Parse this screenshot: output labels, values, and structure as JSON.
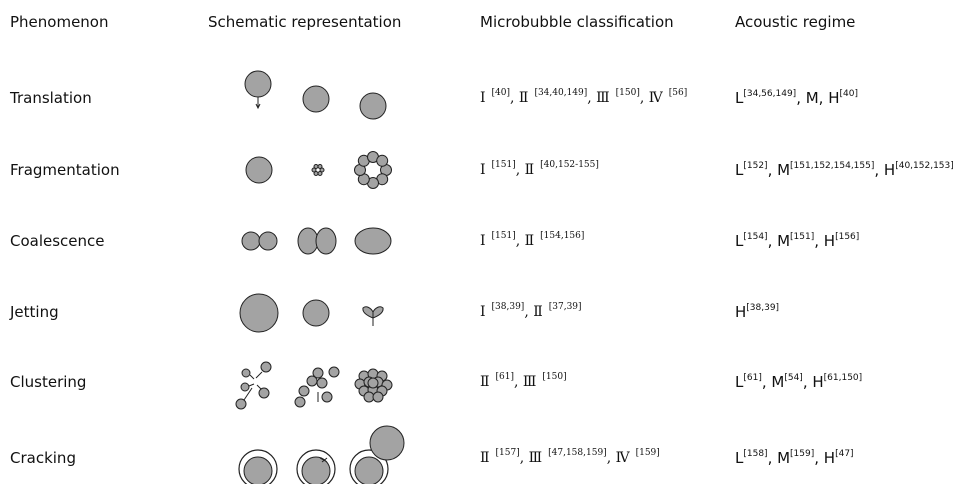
{
  "table": {
    "headers": [
      "Phenomenon",
      "Schematic representation",
      "Microbubble classification",
      "Acoustic regime"
    ],
    "rows": [
      {
        "phenomenon": "Translation",
        "classification": [
          {
            "text": "Ⅰ",
            "sup": "[40]"
          },
          {
            "text": ", Ⅱ",
            "sup": "[34,40,149]"
          },
          {
            "text": ", Ⅲ",
            "sup": "[150]"
          },
          {
            "text": ", Ⅳ",
            "sup": "[56]"
          }
        ],
        "regime": [
          {
            "text": "L",
            "sup": "[34,56,149]"
          },
          {
            "text": ", M, H",
            "sup": "[40]"
          }
        ]
      },
      {
        "phenomenon": "Fragmentation",
        "classification": [
          {
            "text": "Ⅰ",
            "sup": "[151]"
          },
          {
            "text": ", Ⅱ",
            "sup": "[40,152-155]"
          }
        ],
        "regime": [
          {
            "text": "L",
            "sup": "[152]"
          },
          {
            "text": ", M",
            "sup": "[151,152,154,155]"
          },
          {
            "text": ", H",
            "sup": "[40,152,153]"
          }
        ]
      },
      {
        "phenomenon": "Coalescence",
        "classification": [
          {
            "text": "Ⅰ",
            "sup": "[151]"
          },
          {
            "text": ", Ⅱ",
            "sup": "[154,156]"
          }
        ],
        "regime": [
          {
            "text": "L",
            "sup": "[154]"
          },
          {
            "text": ", M",
            "sup": "[151]"
          },
          {
            "text": ", H",
            "sup": "[156]"
          }
        ]
      },
      {
        "phenomenon": "Jetting",
        "classification": [
          {
            "text": "Ⅰ",
            "sup": "[38,39]"
          },
          {
            "text": ", Ⅱ",
            "sup": "[37,39]"
          }
        ],
        "regime": [
          {
            "text": "H",
            "sup": "[38,39]"
          }
        ]
      },
      {
        "phenomenon": "Clustering",
        "classification": [
          {
            "text": "Ⅱ",
            "sup": "[61]"
          },
          {
            "text": ", Ⅲ",
            "sup": "[150]"
          }
        ],
        "regime": [
          {
            "text": "L",
            "sup": "[61]"
          },
          {
            "text": ", M",
            "sup": "[54]"
          },
          {
            "text": ", H",
            "sup": "[61,150]"
          }
        ]
      },
      {
        "phenomenon": "Cracking",
        "classification": [
          {
            "text": "Ⅱ",
            "sup": "[157]"
          },
          {
            "text": ", Ⅲ",
            "sup": "[47,158,159]"
          },
          {
            "text": ", Ⅳ",
            "sup": "[159]"
          }
        ],
        "regime": [
          {
            "text": "L",
            "sup": "[158]"
          },
          {
            "text": ", M",
            "sup": "[159]"
          },
          {
            "text": ", H",
            "sup": "[47]"
          }
        ]
      }
    ]
  }
}
